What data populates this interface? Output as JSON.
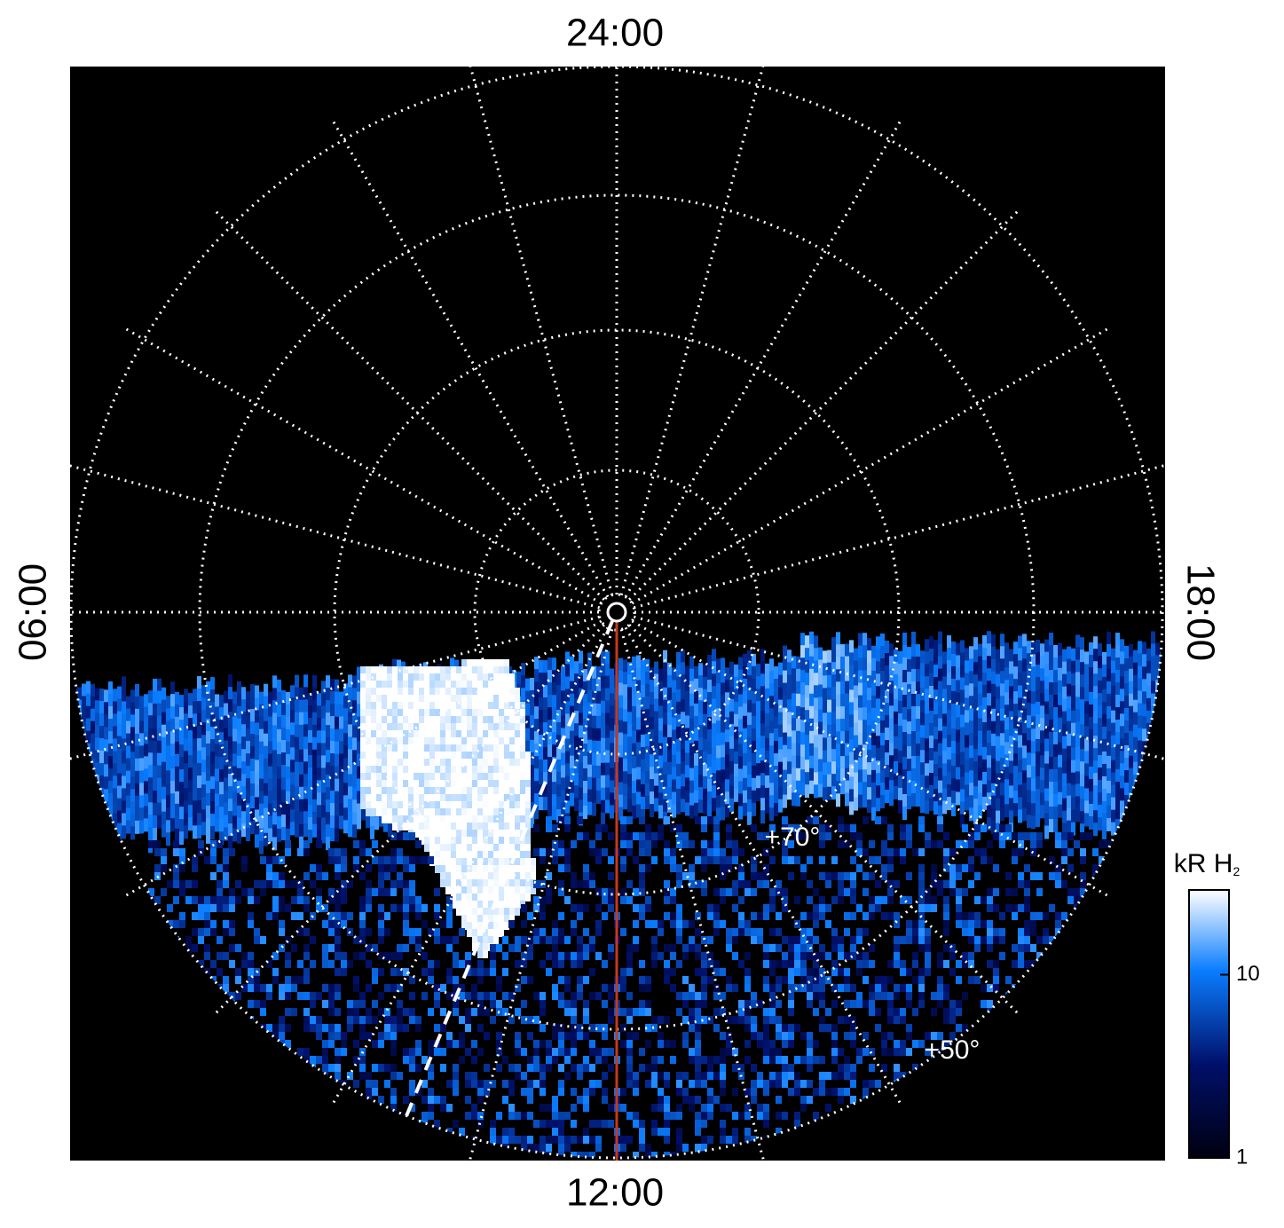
{
  "labels": {
    "top": "24:00",
    "bottom": "12:00",
    "left": "06:00",
    "right": "18:00"
  },
  "latitude_labels": [
    "+70°",
    "+50°"
  ],
  "colorbar": {
    "title": "kR H",
    "title_subscript": "2",
    "lim": [
      1,
      29
    ],
    "log_scale": true,
    "ticks": [
      1,
      10
    ]
  }
}
